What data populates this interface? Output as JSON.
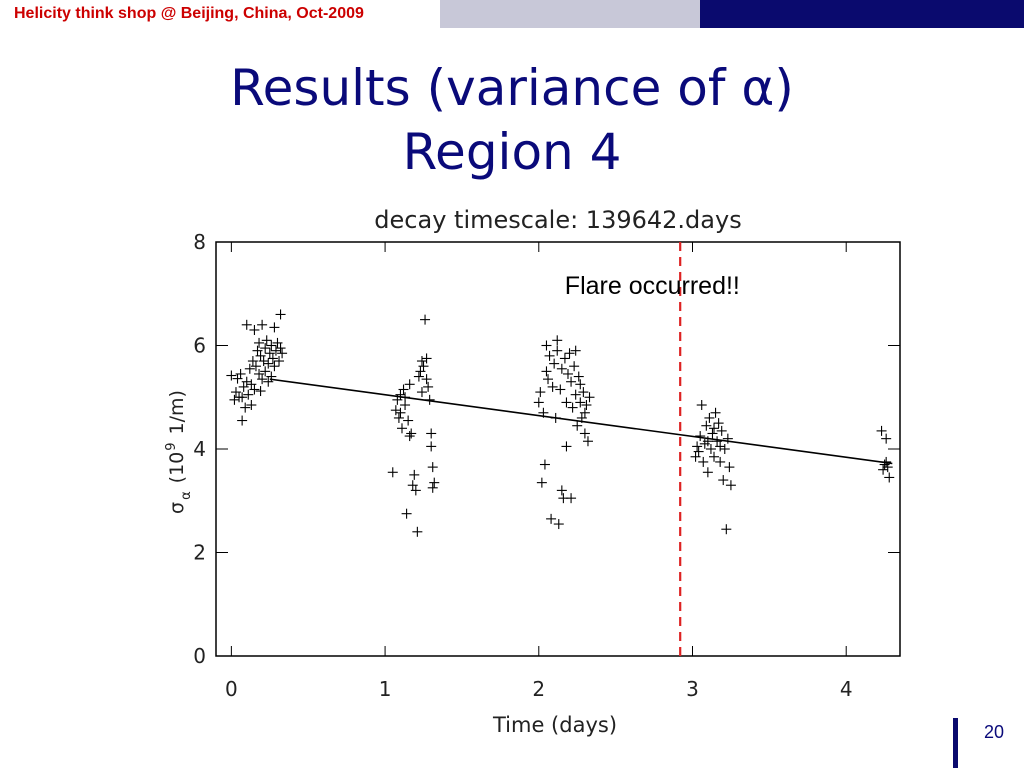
{
  "header": {
    "banner_text": "Helicity think shop @ Beijing, China,  Oct-2009",
    "accent_red": "#cc0000",
    "navy": "#0a0a6e",
    "grey": "#c8c8d8"
  },
  "slide": {
    "title_line1": "Results (variance of α)",
    "title_line2": "Region 4",
    "page_number": "20"
  },
  "chart_data": {
    "type": "scatter",
    "title": "decay timescale: 139642.days",
    "xlabel": "Time (days)",
    "ylabel_main": "σ",
    "ylabel_sub": "α",
    "ylabel_open": "(10",
    "ylabel_sup": "9",
    "ylabel_units": "1/m)",
    "xlim": [
      -0.1,
      4.35
    ],
    "ylim": [
      0,
      8
    ],
    "x_ticks": [
      "0",
      "1",
      "2",
      "3",
      "4"
    ],
    "y_ticks": [
      "0",
      "2",
      "4",
      "6",
      "8"
    ],
    "marker": "+",
    "grid": false,
    "fit_line": {
      "x": [
        0.25,
        4.3
      ],
      "y": [
        5.35,
        3.72
      ]
    },
    "flare_line": {
      "x": 2.92,
      "color": "#dd2222",
      "style": "dashed"
    },
    "annotation": {
      "text": "Flare occurred!!",
      "x": 2.95,
      "y": 7.15
    },
    "series": [
      {
        "points": [
          [
            0.0,
            5.42
          ],
          [
            0.02,
            4.95
          ],
          [
            0.03,
            5.1
          ],
          [
            0.04,
            5.36
          ],
          [
            0.05,
            5.0
          ],
          [
            0.06,
            5.45
          ],
          [
            0.07,
            4.55
          ],
          [
            0.08,
            5.2
          ],
          [
            0.09,
            4.8
          ],
          [
            0.1,
            5.3
          ],
          [
            0.1,
            6.4
          ],
          [
            0.11,
            5.05
          ],
          [
            0.12,
            5.55
          ],
          [
            0.13,
            5.25
          ],
          [
            0.14,
            5.7
          ],
          [
            0.15,
            6.3
          ],
          [
            0.15,
            5.15
          ],
          [
            0.16,
            5.6
          ],
          [
            0.17,
            5.9
          ],
          [
            0.18,
            5.45
          ],
          [
            0.18,
            6.05
          ],
          [
            0.19,
            5.8
          ],
          [
            0.2,
            5.35
          ],
          [
            0.2,
            6.4
          ],
          [
            0.21,
            5.7
          ],
          [
            0.22,
            5.95
          ],
          [
            0.22,
            5.5
          ],
          [
            0.23,
            6.1
          ],
          [
            0.24,
            5.65
          ],
          [
            0.25,
            5.85
          ],
          [
            0.26,
            5.4
          ],
          [
            0.26,
            6.0
          ],
          [
            0.27,
            5.75
          ],
          [
            0.28,
            6.35
          ],
          [
            0.28,
            5.6
          ],
          [
            0.29,
            5.9
          ],
          [
            0.3,
            6.05
          ],
          [
            0.31,
            5.7
          ],
          [
            0.32,
            6.6
          ],
          [
            0.32,
            5.95
          ],
          [
            0.33,
            5.85
          ],
          [
            0.07,
            5.0
          ],
          [
            0.13,
            4.85
          ],
          [
            0.19,
            5.12
          ],
          [
            0.24,
            5.3
          ],
          [
            1.05,
            3.55
          ],
          [
            1.07,
            4.75
          ],
          [
            1.08,
            4.95
          ],
          [
            1.09,
            4.6
          ],
          [
            1.1,
            5.05
          ],
          [
            1.11,
            4.4
          ],
          [
            1.12,
            5.15
          ],
          [
            1.13,
            4.85
          ],
          [
            1.14,
            2.75
          ],
          [
            1.15,
            4.55
          ],
          [
            1.16,
            5.25
          ],
          [
            1.17,
            4.3
          ],
          [
            1.18,
            3.3
          ],
          [
            1.19,
            3.5
          ],
          [
            1.2,
            3.2
          ],
          [
            1.21,
            2.4
          ],
          [
            1.22,
            5.4
          ],
          [
            1.23,
            5.5
          ],
          [
            1.24,
            5.7
          ],
          [
            1.25,
            5.6
          ],
          [
            1.26,
            6.5
          ],
          [
            1.27,
            5.35
          ],
          [
            1.28,
            5.2
          ],
          [
            1.29,
            4.95
          ],
          [
            1.3,
            4.3
          ],
          [
            1.3,
            4.05
          ],
          [
            1.31,
            3.65
          ],
          [
            1.31,
            3.25
          ],
          [
            1.32,
            3.35
          ],
          [
            1.1,
            4.7
          ],
          [
            1.13,
            5.0
          ],
          [
            1.16,
            4.25
          ],
          [
            1.24,
            5.1
          ],
          [
            1.27,
            5.75
          ],
          [
            2.0,
            4.9
          ],
          [
            2.01,
            5.1
          ],
          [
            2.02,
            3.35
          ],
          [
            2.03,
            4.7
          ],
          [
            2.04,
            3.7
          ],
          [
            2.05,
            5.5
          ],
          [
            2.05,
            6.0
          ],
          [
            2.06,
            5.35
          ],
          [
            2.07,
            5.8
          ],
          [
            2.08,
            2.65
          ],
          [
            2.09,
            5.2
          ],
          [
            2.1,
            5.65
          ],
          [
            2.11,
            4.6
          ],
          [
            2.12,
            5.9
          ],
          [
            2.13,
            2.55
          ],
          [
            2.14,
            5.15
          ],
          [
            2.15,
            5.55
          ],
          [
            2.16,
            3.05
          ],
          [
            2.17,
            5.75
          ],
          [
            2.18,
            4.05
          ],
          [
            2.19,
            5.45
          ],
          [
            2.2,
            5.85
          ],
          [
            2.21,
            5.3
          ],
          [
            2.22,
            4.8
          ],
          [
            2.23,
            5.6
          ],
          [
            2.24,
            5.05
          ],
          [
            2.25,
            4.45
          ],
          [
            2.26,
            5.4
          ],
          [
            2.27,
            4.9
          ],
          [
            2.28,
            4.6
          ],
          [
            2.29,
            5.1
          ],
          [
            2.3,
            4.3
          ],
          [
            2.31,
            4.85
          ],
          [
            2.32,
            4.15
          ],
          [
            2.33,
            5.0
          ],
          [
            2.12,
            6.1
          ],
          [
            2.15,
            3.2
          ],
          [
            2.18,
            4.9
          ],
          [
            2.21,
            3.05
          ],
          [
            2.24,
            5.9
          ],
          [
            2.27,
            5.25
          ],
          [
            2.3,
            4.7
          ],
          [
            3.02,
            3.85
          ],
          [
            3.03,
            4.05
          ],
          [
            3.04,
            3.95
          ],
          [
            3.05,
            4.25
          ],
          [
            3.06,
            4.85
          ],
          [
            3.07,
            3.75
          ],
          [
            3.08,
            4.1
          ],
          [
            3.09,
            4.45
          ],
          [
            3.1,
            3.55
          ],
          [
            3.11,
            4.6
          ],
          [
            3.12,
            4.0
          ],
          [
            3.13,
            4.3
          ],
          [
            3.14,
            3.85
          ],
          [
            3.15,
            4.7
          ],
          [
            3.16,
            4.15
          ],
          [
            3.17,
            4.5
          ],
          [
            3.18,
            3.75
          ],
          [
            3.19,
            4.35
          ],
          [
            3.2,
            3.4
          ],
          [
            3.21,
            4.0
          ],
          [
            3.22,
            2.45
          ],
          [
            3.23,
            4.2
          ],
          [
            3.24,
            3.65
          ],
          [
            3.25,
            3.3
          ],
          [
            3.1,
            4.15
          ],
          [
            3.14,
            4.4
          ],
          [
            3.18,
            4.05
          ],
          [
            4.23,
            4.35
          ],
          [
            4.24,
            3.6
          ],
          [
            4.25,
            3.7
          ],
          [
            4.26,
            4.2
          ],
          [
            4.27,
            3.65
          ],
          [
            4.28,
            3.45
          ],
          [
            4.26,
            3.75
          ]
        ]
      }
    ]
  }
}
